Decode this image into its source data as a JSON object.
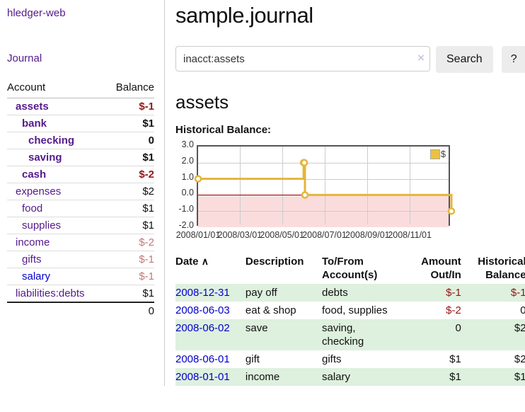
{
  "app": {
    "brand": "hledger-web",
    "nav_journal": "Journal"
  },
  "colors": {
    "link_purple": "#551a8b",
    "link_blue": "#0000cc",
    "negative_strong": "#941616",
    "negative_soft": "#c47878",
    "row_green": "#def0de",
    "chart_line": "#e3b53b",
    "chart_negative_fill": "#fbdcdc",
    "chart_zero_line": "#990000"
  },
  "sidebar": {
    "columns": {
      "account": "Account",
      "balance": "Balance"
    },
    "accounts": [
      {
        "name": "assets",
        "indent": 0,
        "bold": true,
        "balance": "$-1",
        "neg": "strong",
        "link": "purple"
      },
      {
        "name": "bank",
        "indent": 1,
        "bold": true,
        "balance": "$1",
        "neg": "none",
        "link": "purple"
      },
      {
        "name": "checking",
        "indent": 2,
        "bold": true,
        "balance": "0",
        "neg": "none",
        "link": "purple"
      },
      {
        "name": "saving",
        "indent": 2,
        "bold": true,
        "balance": "$1",
        "neg": "none",
        "link": "purple"
      },
      {
        "name": "cash",
        "indent": 1,
        "bold": true,
        "balance": "$-2",
        "neg": "strong",
        "link": "purple"
      },
      {
        "name": "expenses",
        "indent": 0,
        "bold": false,
        "balance": "$2",
        "neg": "none",
        "link": "purple"
      },
      {
        "name": "food",
        "indent": 1,
        "bold": false,
        "balance": "$1",
        "neg": "none",
        "link": "purple"
      },
      {
        "name": "supplies",
        "indent": 1,
        "bold": false,
        "balance": "$1",
        "neg": "none",
        "link": "purple"
      },
      {
        "name": "income",
        "indent": 0,
        "bold": false,
        "balance": "$-2",
        "neg": "soft",
        "link": "purple"
      },
      {
        "name": "gifts",
        "indent": 1,
        "bold": false,
        "balance": "$-1",
        "neg": "soft",
        "link": "purple"
      },
      {
        "name": "salary",
        "indent": 1,
        "bold": false,
        "balance": "$-1",
        "neg": "soft",
        "link": "blue"
      },
      {
        "name": "liabilities:debts",
        "indent": 0,
        "bold": false,
        "balance": "$1",
        "neg": "none",
        "link": "purple"
      }
    ],
    "total": "0"
  },
  "main": {
    "title": "sample.journal",
    "search": {
      "value": "inacct:assets",
      "clear_icon": "×",
      "button": "Search",
      "help": "?"
    },
    "account_heading": "assets",
    "chart_label": "Historical Balance:"
  },
  "chart_data": {
    "type": "line",
    "step": true,
    "title": "Historical Balance",
    "ylim": [
      -2.0,
      3.0
    ],
    "yticks": [
      "3.0",
      "2.0",
      "1.0",
      "0.0",
      "-1.0",
      "-2.0"
    ],
    "ytick_values": [
      3.0,
      2.0,
      1.0,
      0.0,
      -1.0,
      -2.0
    ],
    "xticks": [
      "2008/01/01",
      "2008/03/01",
      "2008/05/01",
      "2008/07/01",
      "2008/09/01",
      "2008/11/01"
    ],
    "xtick_dates": [
      "2008-01-01",
      "2008-03-01",
      "2008-05-01",
      "2008-07-01",
      "2008-09-01",
      "2008-11-01"
    ],
    "x_range": [
      "2008-01-01",
      "2008-12-31"
    ],
    "grid": true,
    "legend": {
      "label": "$",
      "position": "top-right"
    },
    "series": [
      {
        "name": "$",
        "points": [
          {
            "x": "2008-01-01",
            "y": 1
          },
          {
            "x": "2008-06-01",
            "y": 2
          },
          {
            "x": "2008-06-02",
            "y": 2
          },
          {
            "x": "2008-06-03",
            "y": 0
          },
          {
            "x": "2008-12-31",
            "y": -1
          }
        ]
      }
    ]
  },
  "register": {
    "headers": [
      {
        "label": "Date",
        "sort_icon": "∧"
      },
      {
        "label": "Description"
      },
      {
        "label": "To/From Account(s)"
      },
      {
        "label": "Amount Out/In"
      },
      {
        "label": "Historical Balance"
      }
    ],
    "rows": [
      {
        "date": "2008-12-31",
        "description": "pay off",
        "accounts": "debts",
        "amount": "$-1",
        "amount_neg": true,
        "balance": "$-1",
        "balance_neg": true
      },
      {
        "date": "2008-06-03",
        "description": "eat & shop",
        "accounts": "food, supplies",
        "amount": "$-2",
        "amount_neg": true,
        "balance": "0",
        "balance_neg": false
      },
      {
        "date": "2008-06-02",
        "description": "save",
        "accounts": "saving, checking",
        "amount": "0",
        "amount_neg": false,
        "balance": "$2",
        "balance_neg": false
      },
      {
        "date": "2008-06-01",
        "description": "gift",
        "accounts": "gifts",
        "amount": "$1",
        "amount_neg": false,
        "balance": "$2",
        "balance_neg": false
      },
      {
        "date": "2008-01-01",
        "description": "income",
        "accounts": "salary",
        "amount": "$1",
        "amount_neg": false,
        "balance": "$1",
        "balance_neg": false
      }
    ]
  }
}
